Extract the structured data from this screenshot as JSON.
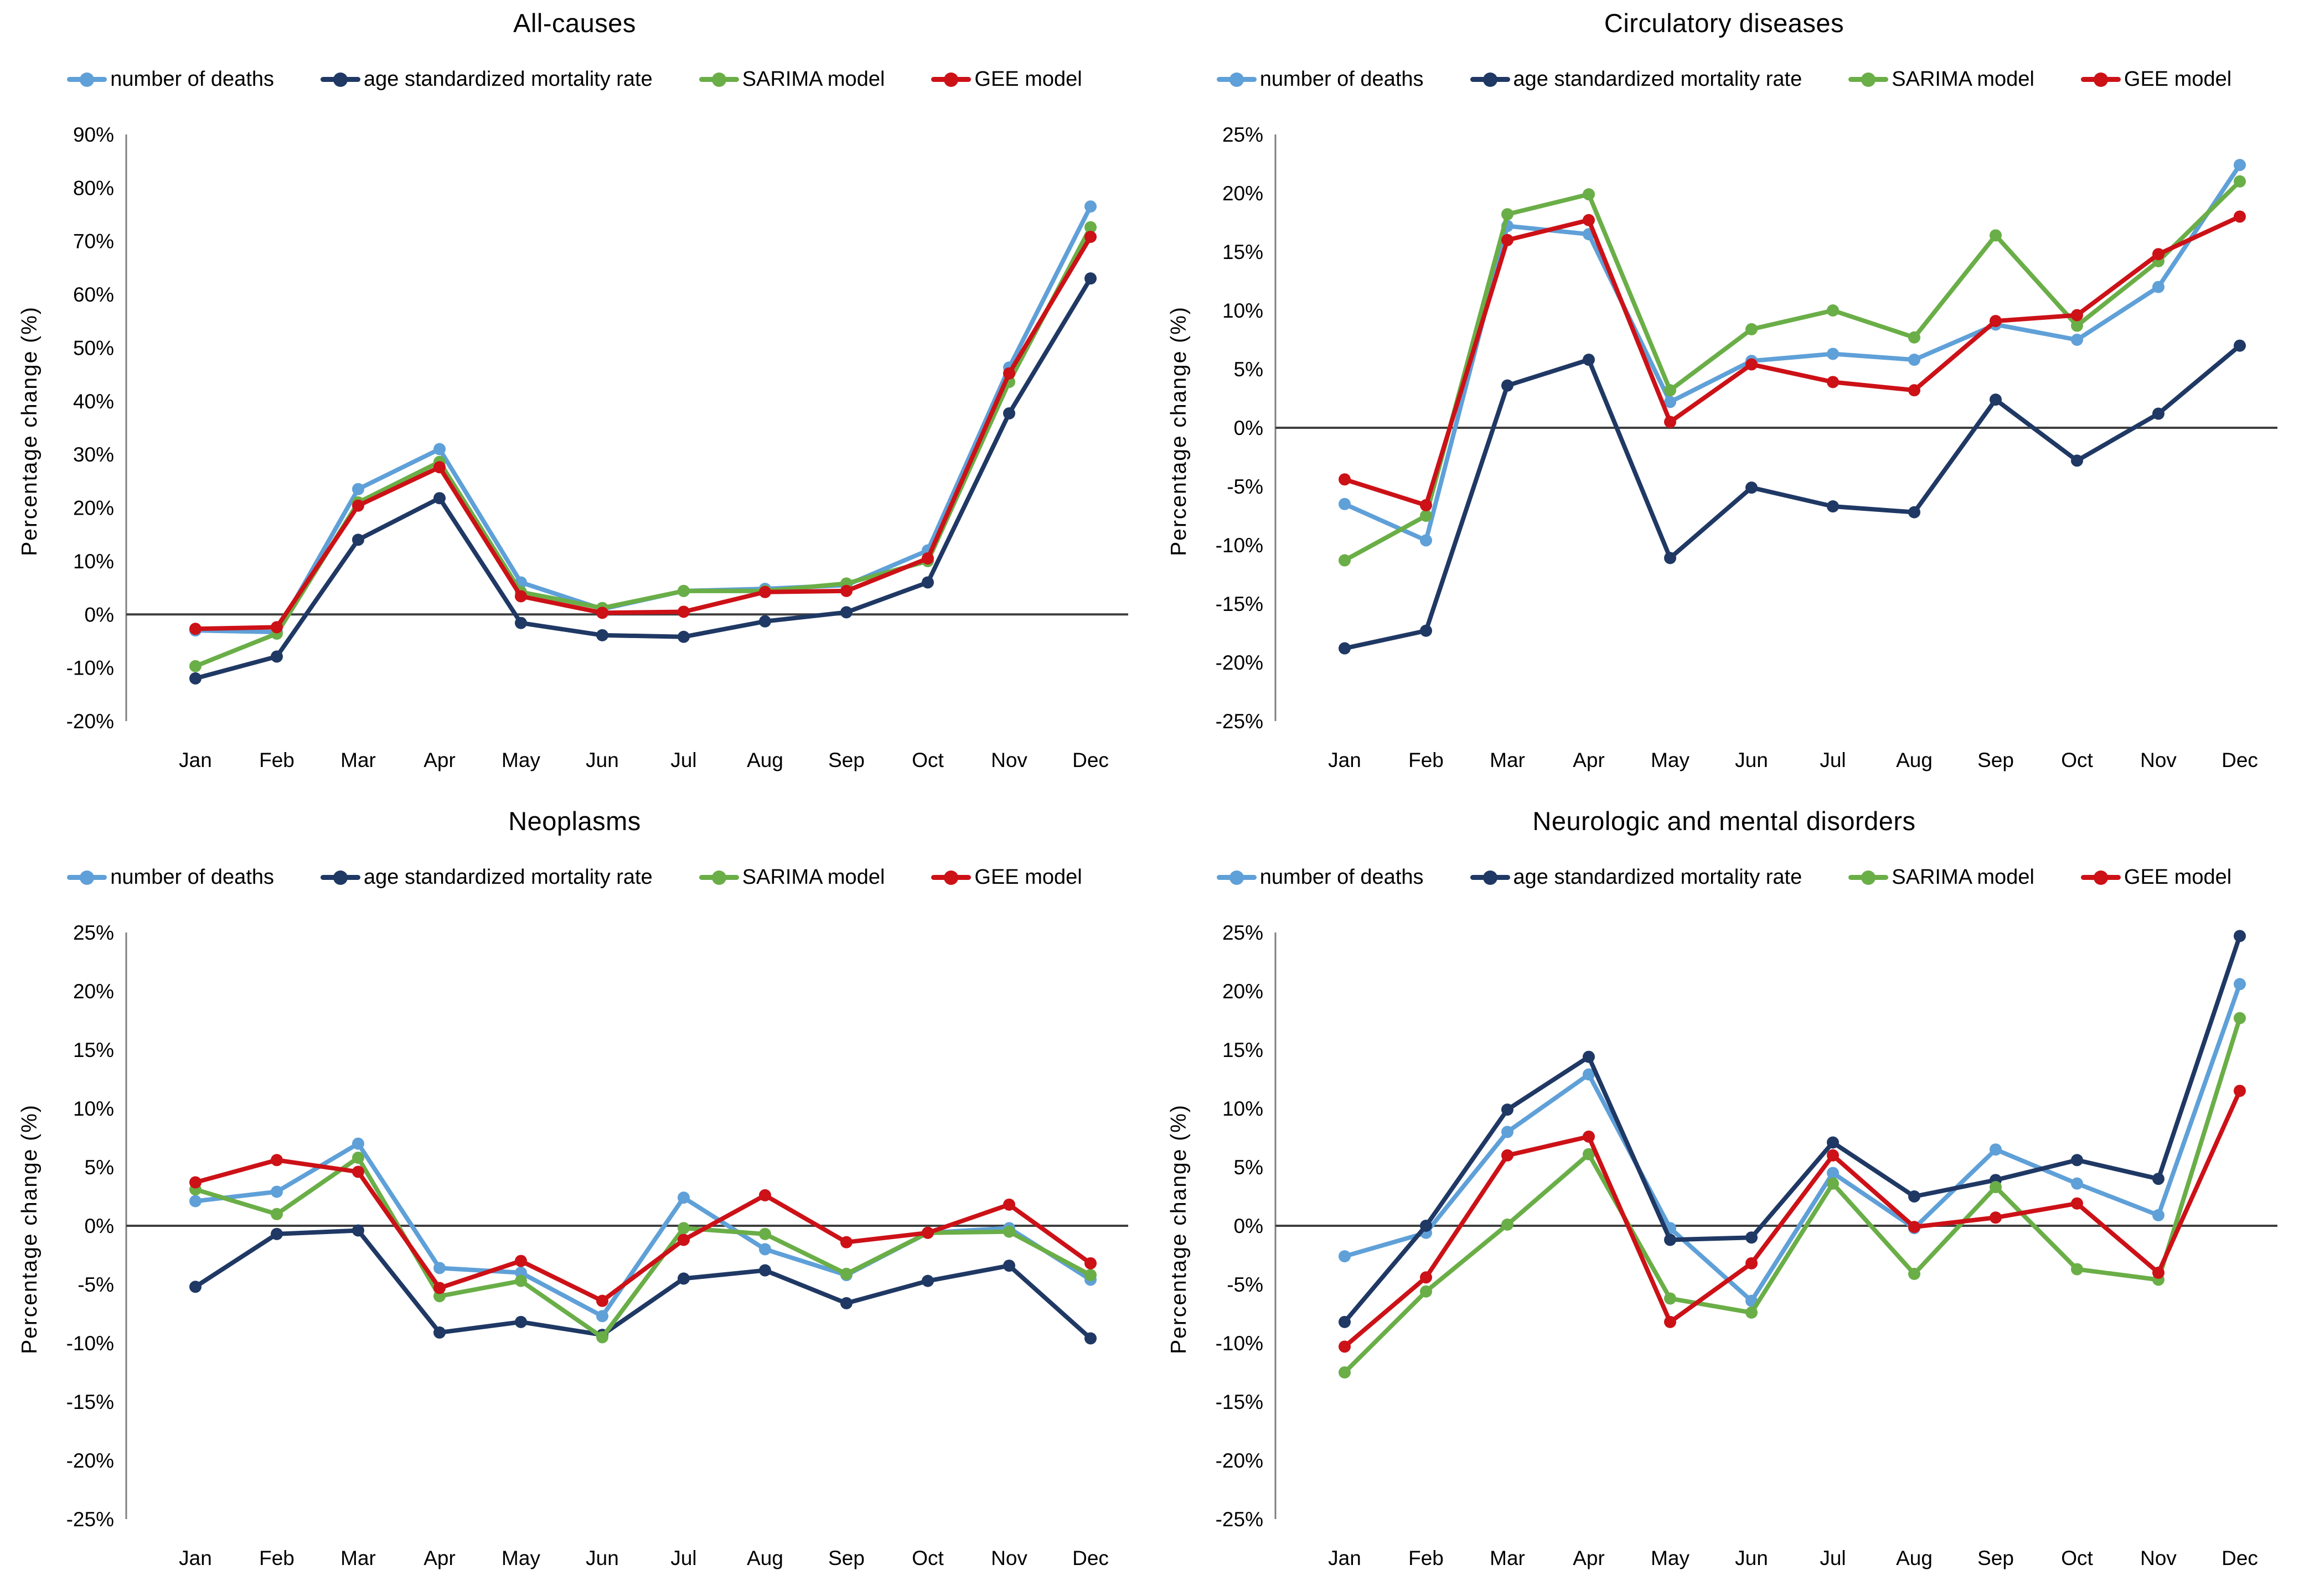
{
  "chart_data": [
    {
      "type": "line",
      "title": "All-causes",
      "xlabel": "",
      "ylabel": "Percentage change (%)",
      "ylim": [
        -20,
        90
      ],
      "ytick_step": 10,
      "grid": false,
      "legend_position": "top",
      "categories": [
        "Jan",
        "Feb",
        "Mar",
        "Apr",
        "May",
        "Jun",
        "Jul",
        "Aug",
        "Sep",
        "Oct",
        "Nov",
        "Dec"
      ],
      "series": [
        {
          "name": "number of deaths",
          "color": "#5FA0D8",
          "values": [
            -3.0,
            -3.3,
            23.5,
            31.0,
            6.0,
            1.0,
            4.4,
            4.8,
            5.5,
            12.0,
            46.3,
            76.5
          ]
        },
        {
          "name": "age standardized mortality rate",
          "color": "#1F3864",
          "values": [
            -12.0,
            -7.9,
            14.0,
            21.8,
            -1.6,
            -3.9,
            -4.2,
            -1.3,
            0.4,
            6.0,
            37.7,
            63.0
          ]
        },
        {
          "name": "SARIMA model",
          "color": "#6AAE47",
          "values": [
            -9.7,
            -3.6,
            21.0,
            28.6,
            4.2,
            1.2,
            4.4,
            4.4,
            5.8,
            10.0,
            43.6,
            72.6
          ]
        },
        {
          "name": "GEE model",
          "color": "#CC1117",
          "values": [
            -2.7,
            -2.4,
            20.4,
            27.6,
            3.4,
            0.3,
            0.5,
            4.2,
            4.4,
            10.5,
            45.2,
            70.8
          ]
        }
      ]
    },
    {
      "type": "line",
      "title": "Circulatory diseases",
      "xlabel": "",
      "ylabel": "Percentage change (%)",
      "ylim": [
        -25,
        25
      ],
      "ytick_step": 5,
      "grid": false,
      "legend_position": "top",
      "categories": [
        "Jan",
        "Feb",
        "Mar",
        "Apr",
        "May",
        "Jun",
        "Jul",
        "Aug",
        "Sep",
        "Oct",
        "Nov",
        "Dec"
      ],
      "series": [
        {
          "name": "number of deaths",
          "color": "#5FA0D8",
          "values": [
            -6.5,
            -9.6,
            17.2,
            16.5,
            2.2,
            5.7,
            6.3,
            5.8,
            8.8,
            7.5,
            12.0,
            22.4
          ]
        },
        {
          "name": "age standardized mortality rate",
          "color": "#1F3864",
          "values": [
            -18.8,
            -17.3,
            3.6,
            5.8,
            -11.1,
            -5.1,
            -6.7,
            -7.2,
            2.4,
            -2.8,
            1.2,
            7.0
          ]
        },
        {
          "name": "SARIMA model",
          "color": "#6AAE47",
          "values": [
            -11.3,
            -7.5,
            18.2,
            19.9,
            3.2,
            8.4,
            10.0,
            7.7,
            16.4,
            8.7,
            14.2,
            21.0
          ]
        },
        {
          "name": "GEE model",
          "color": "#CC1117",
          "values": [
            -4.4,
            -6.6,
            16.0,
            17.7,
            0.5,
            5.4,
            3.9,
            3.2,
            9.1,
            9.6,
            14.8,
            18.0
          ]
        }
      ]
    },
    {
      "type": "line",
      "title": "Neoplasms",
      "xlabel": "",
      "ylabel": "Percentage change (%)",
      "ylim": [
        -25,
        25
      ],
      "ytick_step": 5,
      "grid": false,
      "legend_position": "top",
      "categories": [
        "Jan",
        "Feb",
        "Mar",
        "Apr",
        "May",
        "Jun",
        "Jul",
        "Aug",
        "Sep",
        "Oct",
        "Nov",
        "Dec"
      ],
      "series": [
        {
          "name": "number of deaths",
          "color": "#5FA0D8",
          "values": [
            2.1,
            2.9,
            7.0,
            -3.6,
            -4.0,
            -7.7,
            2.4,
            -2.0,
            -4.2,
            -0.6,
            -0.2,
            -4.6
          ]
        },
        {
          "name": "age standardized mortality rate",
          "color": "#1F3864",
          "values": [
            -5.2,
            -0.7,
            -0.4,
            -9.1,
            -8.2,
            -9.3,
            -4.5,
            -3.8,
            -6.6,
            -4.7,
            -3.4,
            -9.6
          ]
        },
        {
          "name": "SARIMA model",
          "color": "#6AAE47",
          "values": [
            3.1,
            1.0,
            5.8,
            -6.0,
            -4.7,
            -9.5,
            -0.2,
            -0.7,
            -4.1,
            -0.6,
            -0.5,
            -4.2
          ]
        },
        {
          "name": "GEE model",
          "color": "#CC1117",
          "values": [
            3.7,
            5.6,
            4.6,
            -5.3,
            -3.0,
            -6.4,
            -1.2,
            2.6,
            -1.4,
            -0.6,
            1.8,
            -3.2
          ]
        }
      ]
    },
    {
      "type": "line",
      "title": "Neurologic and mental disorders",
      "xlabel": "",
      "ylabel": "Percentage change (%)",
      "ylim": [
        -25,
        25
      ],
      "ytick_step": 5,
      "grid": false,
      "legend_position": "top",
      "categories": [
        "Jan",
        "Feb",
        "Mar",
        "Apr",
        "May",
        "Jun",
        "Jul",
        "Aug",
        "Sep",
        "Oct",
        "Nov",
        "Dec"
      ],
      "series": [
        {
          "name": "number of deaths",
          "color": "#5FA0D8",
          "values": [
            -2.6,
            -0.6,
            8.0,
            12.9,
            -0.2,
            -6.4,
            4.5,
            -0.2,
            6.5,
            3.6,
            0.9,
            20.6
          ]
        },
        {
          "name": "age standardized mortality rate",
          "color": "#1F3864",
          "values": [
            -8.2,
            0.0,
            9.9,
            14.4,
            -1.2,
            -1.0,
            7.1,
            2.5,
            3.9,
            5.6,
            4.0,
            24.7
          ]
        },
        {
          "name": "SARIMA model",
          "color": "#6AAE47",
          "values": [
            -12.5,
            -5.6,
            0.1,
            6.1,
            -6.2,
            -7.4,
            3.6,
            -4.1,
            3.3,
            -3.7,
            -4.6,
            17.7
          ]
        },
        {
          "name": "GEE model",
          "color": "#CC1117",
          "values": [
            -10.3,
            -4.4,
            6.0,
            7.6,
            -8.2,
            -3.2,
            6.0,
            -0.1,
            0.7,
            1.9,
            -4.0,
            11.5
          ]
        }
      ]
    }
  ],
  "style": {
    "zero_line_color": "#3F3F3F",
    "axis_line_color": "#7F7F7F",
    "background": "#FFFFFF"
  }
}
